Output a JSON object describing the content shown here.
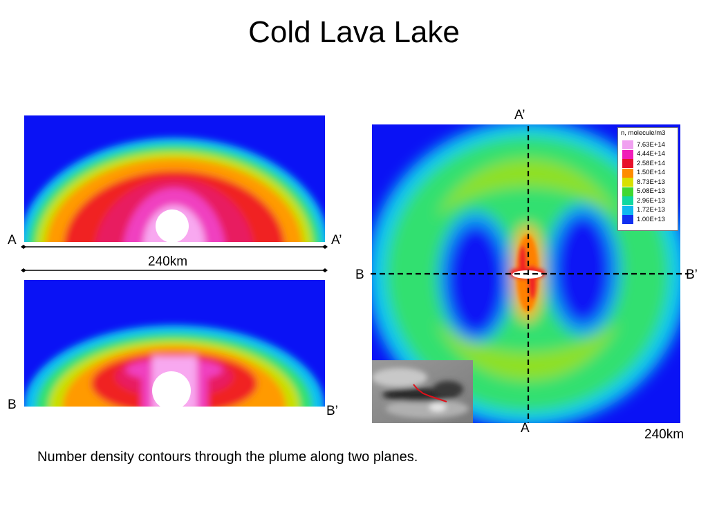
{
  "slide": {
    "title": "Cold Lava Lake",
    "caption": "Number density contours through the plume along two planes."
  },
  "labels": {
    "a": "A",
    "a_prime": "A’",
    "b": "B",
    "b_prime": "B’",
    "scale_left": "240km",
    "scale_right": "240km"
  },
  "legend": {
    "title": "n, molecule/m3",
    "entries": [
      {
        "value": "7.63E+14",
        "color": "#f0a0f0"
      },
      {
        "value": "4.44E+14",
        "color": "#f01cb8"
      },
      {
        "value": "2.58E+14",
        "color": "#e8102a"
      },
      {
        "value": "1.50E+14",
        "color": "#ff8c00"
      },
      {
        "value": "8.73E+13",
        "color": "#d8e000"
      },
      {
        "value": "5.08E+13",
        "color": "#40d830"
      },
      {
        "value": "2.96E+13",
        "color": "#10d8a0"
      },
      {
        "value": "1.72E+13",
        "color": "#10b8f0"
      },
      {
        "value": "1.00E+13",
        "color": "#1030f0"
      }
    ]
  }
}
